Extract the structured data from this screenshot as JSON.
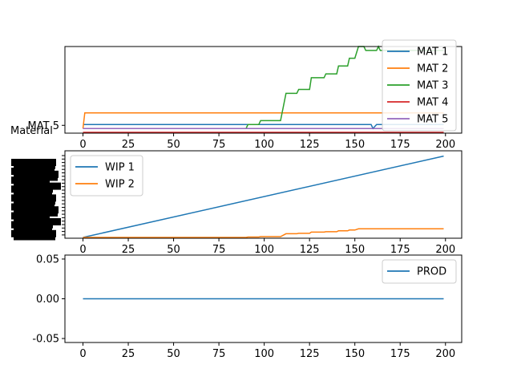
{
  "colors": {
    "blue": "#1f77b4",
    "orange": "#ff7f0e",
    "green": "#2ca02c",
    "red": "#d62728",
    "purple": "#9467bd"
  },
  "chart_data": [
    {
      "type": "line",
      "ylabel": "Material",
      "ytick_labels": [
        "MAT 5"
      ],
      "xlim": [
        -9.95,
        208.95
      ],
      "ylim": [
        -0.2,
        22
      ],
      "x_ticks": [
        0,
        25,
        50,
        75,
        100,
        125,
        150,
        175,
        200
      ],
      "legend_position": "top-right",
      "series": [
        {
          "name": "MAT 1",
          "color": "#1f77b4",
          "points": [
            [
              0,
              2
            ],
            [
              159,
              2
            ],
            [
              160,
              1
            ],
            [
              162,
              2
            ],
            [
              199,
              2
            ]
          ]
        },
        {
          "name": "MAT 2",
          "color": "#ff7f0e",
          "points": [
            [
              0,
              1
            ],
            [
              1,
              5
            ],
            [
              199,
              5
            ]
          ]
        },
        {
          "name": "MAT 3",
          "color": "#2ca02c",
          "points": [
            [
              0,
              1
            ],
            [
              90,
              1
            ],
            [
              91,
              2
            ],
            [
              97,
              2
            ],
            [
              98,
              3
            ],
            [
              109,
              3
            ],
            [
              112,
              10
            ],
            [
              118,
              10
            ],
            [
              119,
              11
            ],
            [
              125,
              11
            ],
            [
              126,
              14
            ],
            [
              133,
              14
            ],
            [
              134,
              15
            ],
            [
              140,
              15
            ],
            [
              141,
              17
            ],
            [
              146,
              17
            ],
            [
              147,
              19
            ],
            [
              150,
              19
            ],
            [
              152,
              22
            ],
            [
              155,
              22
            ],
            [
              156,
              21
            ],
            [
              162,
              21
            ],
            [
              163,
              22
            ],
            [
              164,
              21
            ],
            [
              199,
              21
            ]
          ]
        },
        {
          "name": "MAT 4",
          "color": "#d62728",
          "points": [
            [
              0,
              0
            ],
            [
              199,
              0
            ]
          ]
        },
        {
          "name": "MAT 5",
          "color": "#9467bd",
          "points": [
            [
              0,
              1
            ],
            [
              199,
              1
            ]
          ]
        }
      ]
    },
    {
      "type": "line",
      "ylabel": "",
      "x_ticks": [
        0,
        25,
        50,
        75,
        100,
        125,
        150,
        175,
        200
      ],
      "xlim": [
        -9.95,
        208.95
      ],
      "ylim": [
        -2,
        212
      ],
      "legend_position": "top-left",
      "series": [
        {
          "name": "WIP 1",
          "color": "#1f77b4",
          "points": [
            [
              0,
              0
            ],
            [
              199,
              199
            ]
          ]
        },
        {
          "name": "WIP 2",
          "color": "#ff7f0e",
          "points": [
            [
              0,
              0
            ],
            [
              90,
              0
            ],
            [
              91,
              1
            ],
            [
              97,
              1
            ],
            [
              98,
              2
            ],
            [
              109,
              2
            ],
            [
              112,
              9
            ],
            [
              118,
              9
            ],
            [
              119,
              10
            ],
            [
              125,
              10
            ],
            [
              126,
              13
            ],
            [
              133,
              13
            ],
            [
              134,
              14
            ],
            [
              140,
              14
            ],
            [
              141,
              16
            ],
            [
              146,
              16
            ],
            [
              147,
              18
            ],
            [
              150,
              18
            ],
            [
              152,
              21
            ],
            [
              199,
              21
            ]
          ]
        }
      ]
    },
    {
      "type": "line",
      "ylabel": "",
      "x_ticks": [
        0,
        25,
        50,
        75,
        100,
        125,
        150,
        175,
        200
      ],
      "y_ticks": [
        "0.05",
        "0.00",
        "-0.05"
      ],
      "xlim": [
        -9.95,
        208.95
      ],
      "ylim": [
        -0.055,
        0.055
      ],
      "legend_position": "top-right",
      "series": [
        {
          "name": "PROD",
          "color": "#1f77b4",
          "points": [
            [
              0,
              0
            ],
            [
              199,
              0
            ]
          ]
        }
      ]
    }
  ]
}
